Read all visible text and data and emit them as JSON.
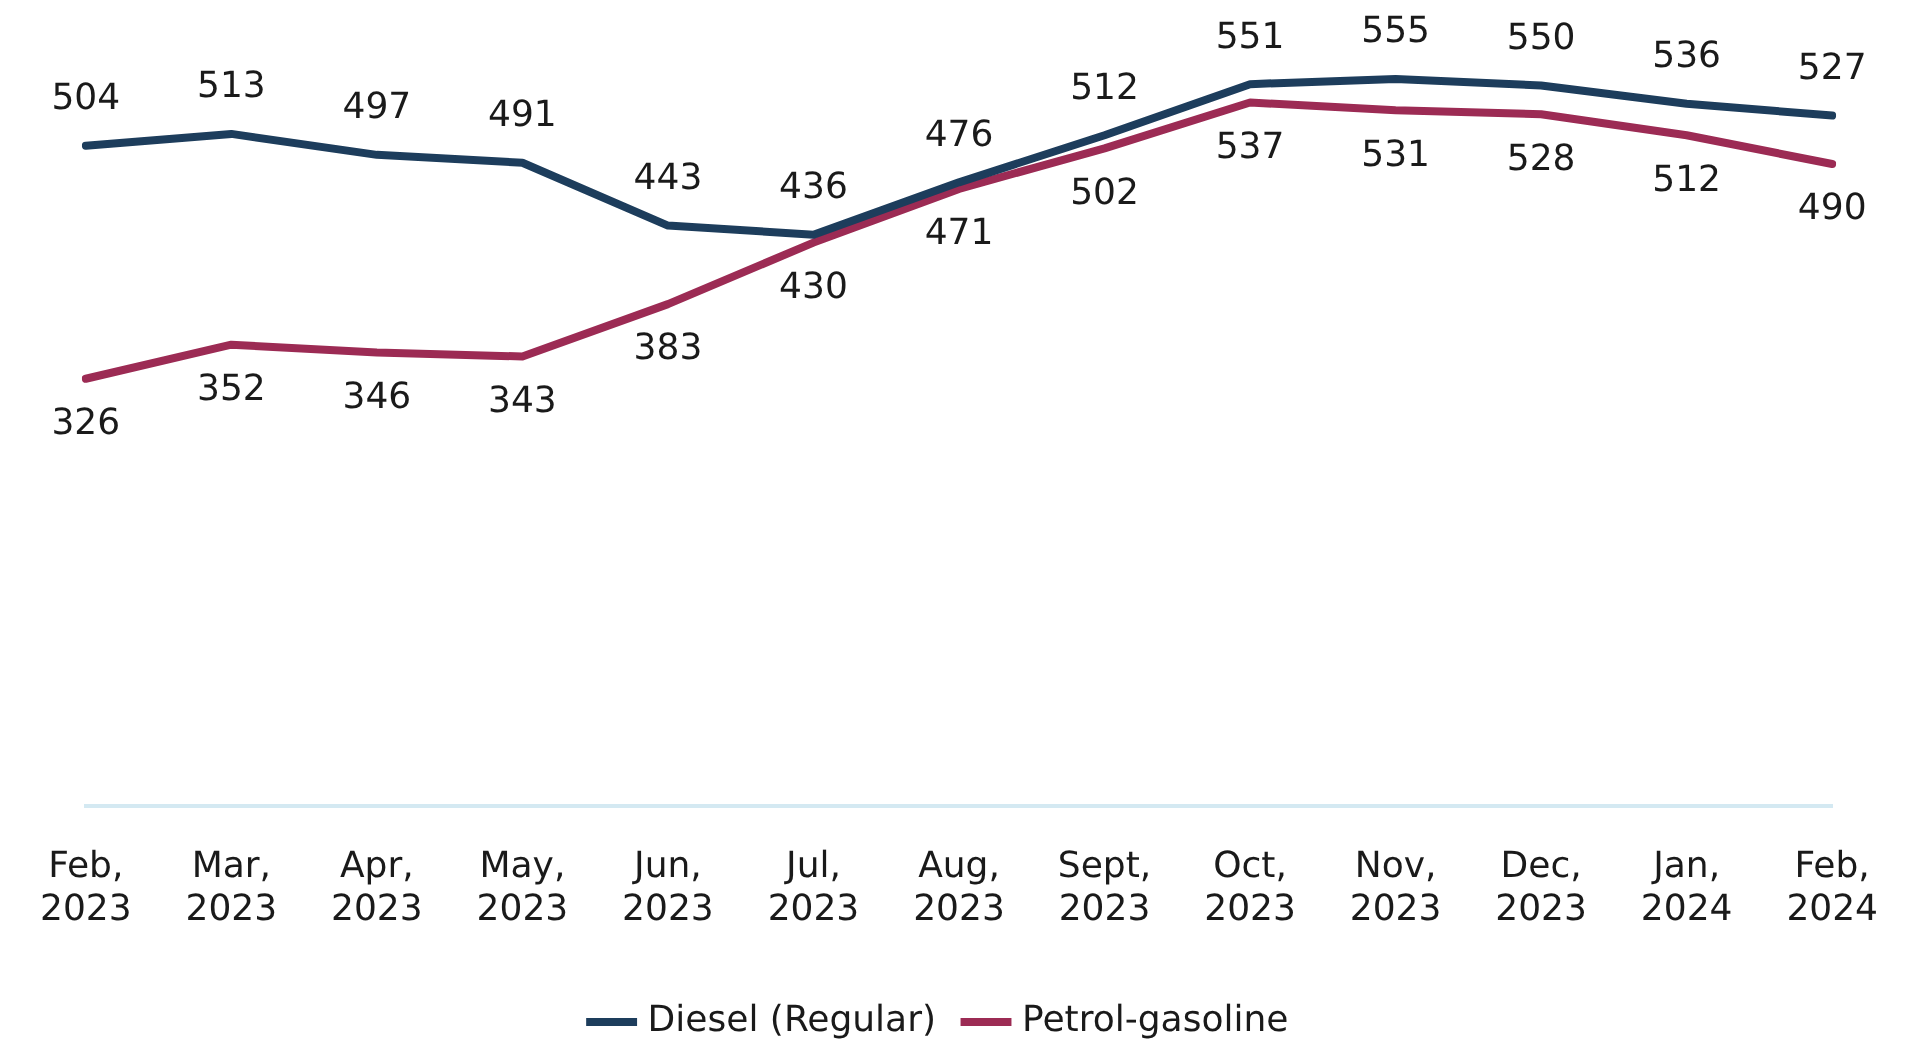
{
  "chart_data": {
    "type": "line",
    "categories": [
      "Feb, 2023",
      "Mar, 2023",
      "Apr, 2023",
      "May, 2023",
      "Jun, 2023",
      "Jul, 2023",
      "Aug, 2023",
      "Sept, 2023",
      "Oct, 2023",
      "Nov, 2023",
      "Dec, 2023",
      "Jan, 2024",
      "Feb, 2024"
    ],
    "series": [
      {
        "name": "Diesel (Regular)",
        "color": "#1d3d5c",
        "values": [
          504,
          513,
          497,
          491,
          443,
          436,
          476,
          512,
          551,
          555,
          550,
          536,
          527
        ]
      },
      {
        "name": "Petrol-gasoline",
        "color": "#9c2b54",
        "values": [
          326,
          352,
          346,
          343,
          383,
          430,
          471,
          502,
          537,
          531,
          528,
          512,
          490
        ]
      }
    ],
    "tick_labels": "x",
    "grid": false,
    "legend": "bottom",
    "data_labels": true,
    "marker": "none",
    "line_style": "solid"
  }
}
